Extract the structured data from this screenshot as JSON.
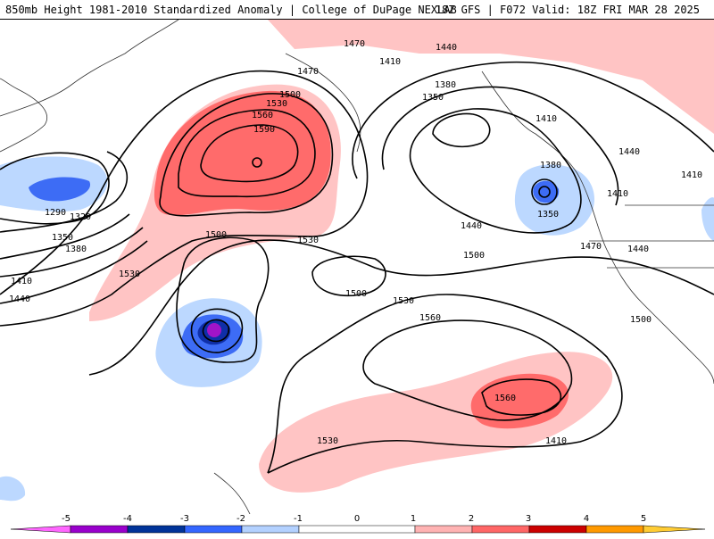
{
  "header": {
    "left_title": "850mb Height 1981-2010 Standardized Anomaly | College of DuPage NEXLAB",
    "right_title": "18Z GFS | F072 Valid: 18Z FRI MAR 28 2025"
  },
  "map": {
    "contour_labels": [
      "1470",
      "1440",
      "1410",
      "1380",
      "1350",
      "1500",
      "1530",
      "1560",
      "1590",
      "1290",
      "1320",
      "1350",
      "1380",
      "1410",
      "1440",
      "1500",
      "1530",
      "1500",
      "1560",
      "1530",
      "1560",
      "1530",
      "1500",
      "1470",
      "1440",
      "1410",
      "1380",
      "1350",
      "1410",
      "1440",
      "1410",
      "1440",
      "1500",
      "1530",
      "1470",
      "1410"
    ]
  },
  "colorbar": {
    "ticks": [
      "-5",
      "-4",
      "-3",
      "-2",
      "-1",
      "0",
      "1",
      "2",
      "3",
      "4",
      "5"
    ],
    "colors": [
      "#ff66ff",
      "#9900cc",
      "#003399",
      "#3366ff",
      "#b3d1ff",
      "#ffffff",
      "#ffb3b3",
      "#ff6666",
      "#cc0000",
      "#ff9900",
      "#ffcc33"
    ]
  }
}
